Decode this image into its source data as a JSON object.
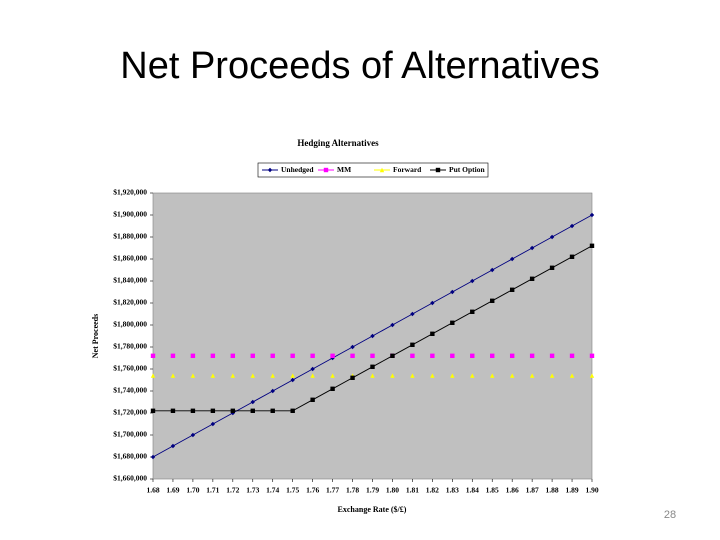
{
  "slide_title": "Net Proceeds of Alternatives",
  "page_number": "28",
  "chart_data": {
    "type": "line",
    "title": "Hedging Alternatives",
    "x_label": "Exchange Rate ($/£)",
    "y_label": "Net Proceeds",
    "categories": [
      "1.68",
      "1.69",
      "1.70",
      "1.71",
      "1.72",
      "1.73",
      "1.74",
      "1.75",
      "1.76",
      "1.77",
      "1.78",
      "1.79",
      "1.80",
      "1.81",
      "1.82",
      "1.83",
      "1.84",
      "1.85",
      "1.86",
      "1.87",
      "1.88",
      "1.89",
      "1.90"
    ],
    "series": [
      {
        "name": "Unhedged",
        "color": "#000080",
        "marker": "diamond",
        "line": true,
        "values": [
          1680000,
          1690000,
          1700000,
          1710000,
          1720000,
          1730000,
          1740000,
          1750000,
          1760000,
          1770000,
          1780000,
          1790000,
          1800000,
          1810000,
          1820000,
          1830000,
          1840000,
          1850000,
          1860000,
          1870000,
          1880000,
          1890000,
          1900000
        ]
      },
      {
        "name": "MM",
        "color": "#ff00ff",
        "marker": "square",
        "line": false,
        "values": [
          1772000,
          1772000,
          1772000,
          1772000,
          1772000,
          1772000,
          1772000,
          1772000,
          1772000,
          1772000,
          1772000,
          1772000,
          1772000,
          1772000,
          1772000,
          1772000,
          1772000,
          1772000,
          1772000,
          1772000,
          1772000,
          1772000,
          1772000
        ]
      },
      {
        "name": "Forward",
        "color": "#ffff00",
        "marker": "triangle",
        "line": false,
        "values": [
          1754000,
          1754000,
          1754000,
          1754000,
          1754000,
          1754000,
          1754000,
          1754000,
          1754000,
          1754000,
          1754000,
          1754000,
          1754000,
          1754000,
          1754000,
          1754000,
          1754000,
          1754000,
          1754000,
          1754000,
          1754000,
          1754000,
          1754000
        ]
      },
      {
        "name": "Put Option",
        "color": "#000000",
        "marker": "square",
        "line": true,
        "values": [
          1722000,
          1722000,
          1722000,
          1722000,
          1722000,
          1722000,
          1722000,
          1722000,
          1732000,
          1742000,
          1752000,
          1762000,
          1772000,
          1782000,
          1792000,
          1802000,
          1812000,
          1822000,
          1832000,
          1842000,
          1852000,
          1862000,
          1872000
        ]
      }
    ],
    "ylim": [
      1660000,
      1920000
    ],
    "yticks": [
      {
        "value": 1660000,
        "label": "$1,660,000"
      },
      {
        "value": 1680000,
        "label": "$1,680,000"
      },
      {
        "value": 1700000,
        "label": "$1,700,000"
      },
      {
        "value": 1720000,
        "label": "$1,720,000"
      },
      {
        "value": 1740000,
        "label": "$1,740,000"
      },
      {
        "value": 1760000,
        "label": "$1,760,000"
      },
      {
        "value": 1780000,
        "label": "$1,780,000"
      },
      {
        "value": 1800000,
        "label": "$1,800,000"
      },
      {
        "value": 1820000,
        "label": "$1,820,000"
      },
      {
        "value": 1840000,
        "label": "$1,840,000"
      },
      {
        "value": 1860000,
        "label": "$1,860,000"
      },
      {
        "value": 1880000,
        "label": "$1,880,000"
      },
      {
        "value": 1900000,
        "label": "$1,900,000"
      },
      {
        "value": 1920000,
        "label": "$1,920,000"
      }
    ],
    "plot_background": "#c0c0c0"
  }
}
